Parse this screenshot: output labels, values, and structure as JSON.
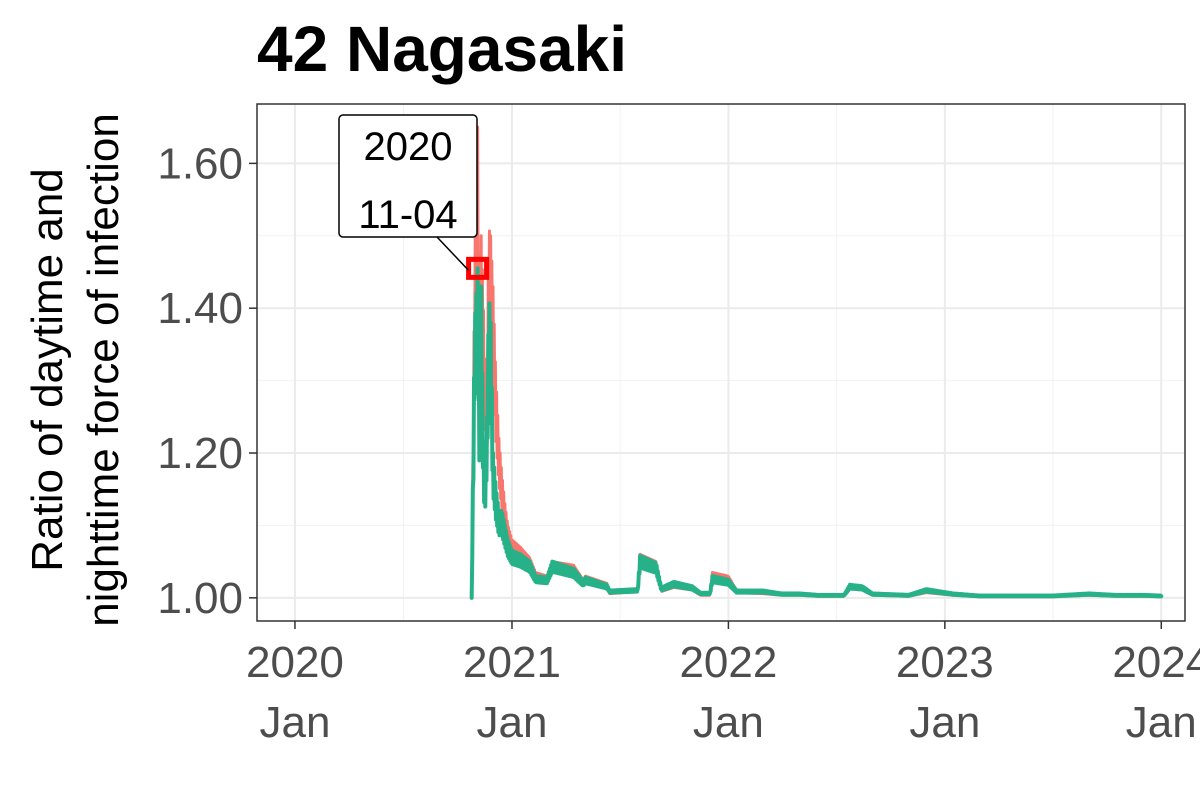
{
  "chart_data": {
    "type": "line",
    "title": "42 Nagasaki",
    "ylabel_lines": [
      "Ratio of daytime and",
      "nighttime force of infection"
    ],
    "xlabel": "",
    "x_ticks": [
      {
        "date": "2020-01-01",
        "line1": "2020",
        "line2": "Jan"
      },
      {
        "date": "2021-01-01",
        "line1": "2021",
        "line2": "Jan"
      },
      {
        "date": "2022-01-01",
        "line1": "2022",
        "line2": "Jan"
      },
      {
        "date": "2023-01-01",
        "line1": "2023",
        "line2": "Jan"
      },
      {
        "date": "2024-01-01",
        "line1": "2024",
        "line2": "Jan"
      }
    ],
    "y_ticks": [
      "1.00",
      "1.20",
      "1.40",
      "1.60"
    ],
    "xlim": [
      "2019-10-29",
      "2024-02-10"
    ],
    "ylim": [
      0.968,
      1.682
    ],
    "grid": true,
    "legend": "none",
    "series": [
      {
        "color": "#f8766d",
        "points": [
          [
            "2020-10-25",
            1.0
          ],
          [
            "2020-10-30",
            1.46
          ],
          [
            "2020-11-02",
            1.57
          ],
          [
            "2020-11-04",
            1.65
          ],
          [
            "2020-11-08",
            1.3
          ],
          [
            "2020-11-10",
            1.5
          ],
          [
            "2020-11-13",
            1.43
          ],
          [
            "2020-11-16",
            1.33
          ],
          [
            "2020-11-20",
            1.3
          ],
          [
            "2020-11-23",
            1.51
          ],
          [
            "2020-11-26",
            1.5
          ],
          [
            "2020-11-30",
            1.43
          ],
          [
            "2020-12-05",
            1.3
          ],
          [
            "2020-12-10",
            1.22
          ],
          [
            "2020-12-15",
            1.17
          ],
          [
            "2020-12-20",
            1.13
          ],
          [
            "2020-12-25",
            1.1
          ],
          [
            "2021-01-01",
            1.08
          ],
          [
            "2021-01-15",
            1.07
          ],
          [
            "2021-01-31",
            1.055
          ],
          [
            "2021-02-10",
            1.035
          ],
          [
            "2021-03-01",
            1.03
          ],
          [
            "2021-03-10",
            1.05
          ],
          [
            "2021-04-15",
            1.045
          ],
          [
            "2021-05-01",
            1.025
          ],
          [
            "2021-05-05",
            1.03
          ],
          [
            "2021-06-10",
            1.02
          ],
          [
            "2021-06-15",
            1.008
          ],
          [
            "2021-08-01",
            1.012
          ],
          [
            "2021-08-05",
            1.06
          ],
          [
            "2021-09-01",
            1.05
          ],
          [
            "2021-09-10",
            1.012
          ],
          [
            "2021-10-01",
            1.02
          ],
          [
            "2021-11-01",
            1.015
          ],
          [
            "2021-11-15",
            1.005
          ],
          [
            "2021-12-01",
            1.005
          ],
          [
            "2021-12-05",
            1.035
          ],
          [
            "2022-01-01",
            1.03
          ],
          [
            "2022-01-15",
            1.01
          ],
          [
            "2022-03-01",
            1.008
          ],
          [
            "2022-04-01",
            1.005
          ],
          [
            "2022-05-01",
            1.005
          ],
          [
            "2022-06-01",
            1.003
          ],
          [
            "2022-07-15",
            1.003
          ],
          [
            "2022-07-25",
            1.017
          ],
          [
            "2022-08-15",
            1.015
          ],
          [
            "2022-09-01",
            1.005
          ],
          [
            "2022-11-01",
            1.003
          ],
          [
            "2022-12-01",
            1.01
          ],
          [
            "2023-01-15",
            1.005
          ],
          [
            "2023-03-01",
            1.002
          ],
          [
            "2023-05-01",
            1.002
          ],
          [
            "2023-07-01",
            1.002
          ],
          [
            "2023-09-01",
            1.005
          ],
          [
            "2023-10-15",
            1.003
          ],
          [
            "2023-12-01",
            1.003
          ],
          [
            "2024-01-01",
            1.002
          ]
        ]
      },
      {
        "color": "#27b188",
        "points": [
          [
            "2020-10-25",
            1.0
          ],
          [
            "2020-10-30",
            1.38
          ],
          [
            "2020-11-02",
            1.42
          ],
          [
            "2020-11-04",
            1.455
          ],
          [
            "2020-11-08",
            1.2
          ],
          [
            "2020-11-10",
            1.43
          ],
          [
            "2020-11-13",
            1.25
          ],
          [
            "2020-11-16",
            1.15
          ],
          [
            "2020-11-20",
            1.25
          ],
          [
            "2020-11-23",
            1.42
          ],
          [
            "2020-11-26",
            1.38
          ],
          [
            "2020-11-30",
            1.2
          ],
          [
            "2020-12-05",
            1.15
          ],
          [
            "2020-12-10",
            1.12
          ],
          [
            "2020-12-15",
            1.12
          ],
          [
            "2020-12-20",
            1.1
          ],
          [
            "2020-12-25",
            1.08
          ],
          [
            "2021-01-01",
            1.065
          ],
          [
            "2021-01-15",
            1.06
          ],
          [
            "2021-01-31",
            1.05
          ],
          [
            "2021-02-10",
            1.03
          ],
          [
            "2021-03-01",
            1.028
          ],
          [
            "2021-03-10",
            1.05
          ],
          [
            "2021-04-15",
            1.04
          ],
          [
            "2021-05-01",
            1.023
          ],
          [
            "2021-05-05",
            1.028
          ],
          [
            "2021-06-10",
            1.018
          ],
          [
            "2021-06-15",
            1.01
          ],
          [
            "2021-08-01",
            1.012
          ],
          [
            "2021-08-05",
            1.058
          ],
          [
            "2021-09-01",
            1.048
          ],
          [
            "2021-09-10",
            1.014
          ],
          [
            "2021-10-01",
            1.022
          ],
          [
            "2021-11-01",
            1.016
          ],
          [
            "2021-11-15",
            1.007
          ],
          [
            "2021-12-01",
            1.007
          ],
          [
            "2021-12-05",
            1.03
          ],
          [
            "2022-01-01",
            1.025
          ],
          [
            "2022-01-15",
            1.01
          ],
          [
            "2022-03-01",
            1.01
          ],
          [
            "2022-04-01",
            1.006
          ],
          [
            "2022-05-01",
            1.006
          ],
          [
            "2022-06-01",
            1.004
          ],
          [
            "2022-07-15",
            1.004
          ],
          [
            "2022-07-25",
            1.018
          ],
          [
            "2022-08-15",
            1.016
          ],
          [
            "2022-09-01",
            1.006
          ],
          [
            "2022-11-01",
            1.004
          ],
          [
            "2022-12-01",
            1.012
          ],
          [
            "2023-01-15",
            1.006
          ],
          [
            "2023-03-01",
            1.003
          ],
          [
            "2023-05-01",
            1.003
          ],
          [
            "2023-07-01",
            1.003
          ],
          [
            "2023-09-01",
            1.006
          ],
          [
            "2023-10-15",
            1.004
          ],
          [
            "2023-12-01",
            1.004
          ],
          [
            "2024-01-01",
            1.003
          ]
        ]
      }
    ],
    "annotation": {
      "line1": "2020",
      "line2": "11-04",
      "date": "2020-11-04",
      "value": 1.455,
      "marker_color": "#ff0000"
    }
  }
}
